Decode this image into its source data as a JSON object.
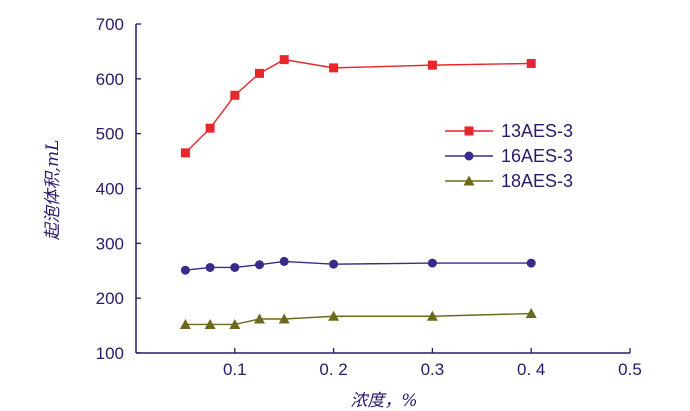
{
  "chart_data": {
    "type": "line",
    "xlabel": "浓度，%",
    "ylabel": "起泡体积,mL",
    "xlim": [
      0,
      0.5
    ],
    "ylim": [
      100,
      700
    ],
    "x_ticks": [
      0.1,
      0.2,
      0.3,
      0.4,
      0.5
    ],
    "x_tick_labels": [
      "0.1",
      "0. 2",
      "0.3",
      "0. 4",
      "0.5"
    ],
    "y_ticks": [
      100,
      200,
      300,
      400,
      500,
      600,
      700
    ],
    "y_tick_labels": [
      "100",
      "200",
      "300",
      "400",
      "500",
      "600",
      "700"
    ],
    "grid": false,
    "legend_position": "right",
    "series": [
      {
        "name": "13AES-3",
        "color": "#e8262b",
        "marker": "square",
        "x": [
          0.05,
          0.075,
          0.1,
          0.125,
          0.15,
          0.2,
          0.3,
          0.4
        ],
        "y": [
          465,
          510,
          570,
          610,
          635,
          620,
          625,
          628
        ]
      },
      {
        "name": "16AES-3",
        "color": "#3b2a8c",
        "marker": "circle",
        "x": [
          0.05,
          0.075,
          0.1,
          0.125,
          0.15,
          0.2,
          0.3,
          0.4
        ],
        "y": [
          251,
          256,
          256,
          261,
          267,
          262,
          264,
          264
        ]
      },
      {
        "name": "18AES-3",
        "color": "#6b6a1c",
        "marker": "triangle",
        "x": [
          0.05,
          0.075,
          0.1,
          0.125,
          0.15,
          0.2,
          0.3,
          0.4
        ],
        "y": [
          152,
          152,
          152,
          162,
          162,
          167,
          167,
          172
        ]
      }
    ]
  }
}
